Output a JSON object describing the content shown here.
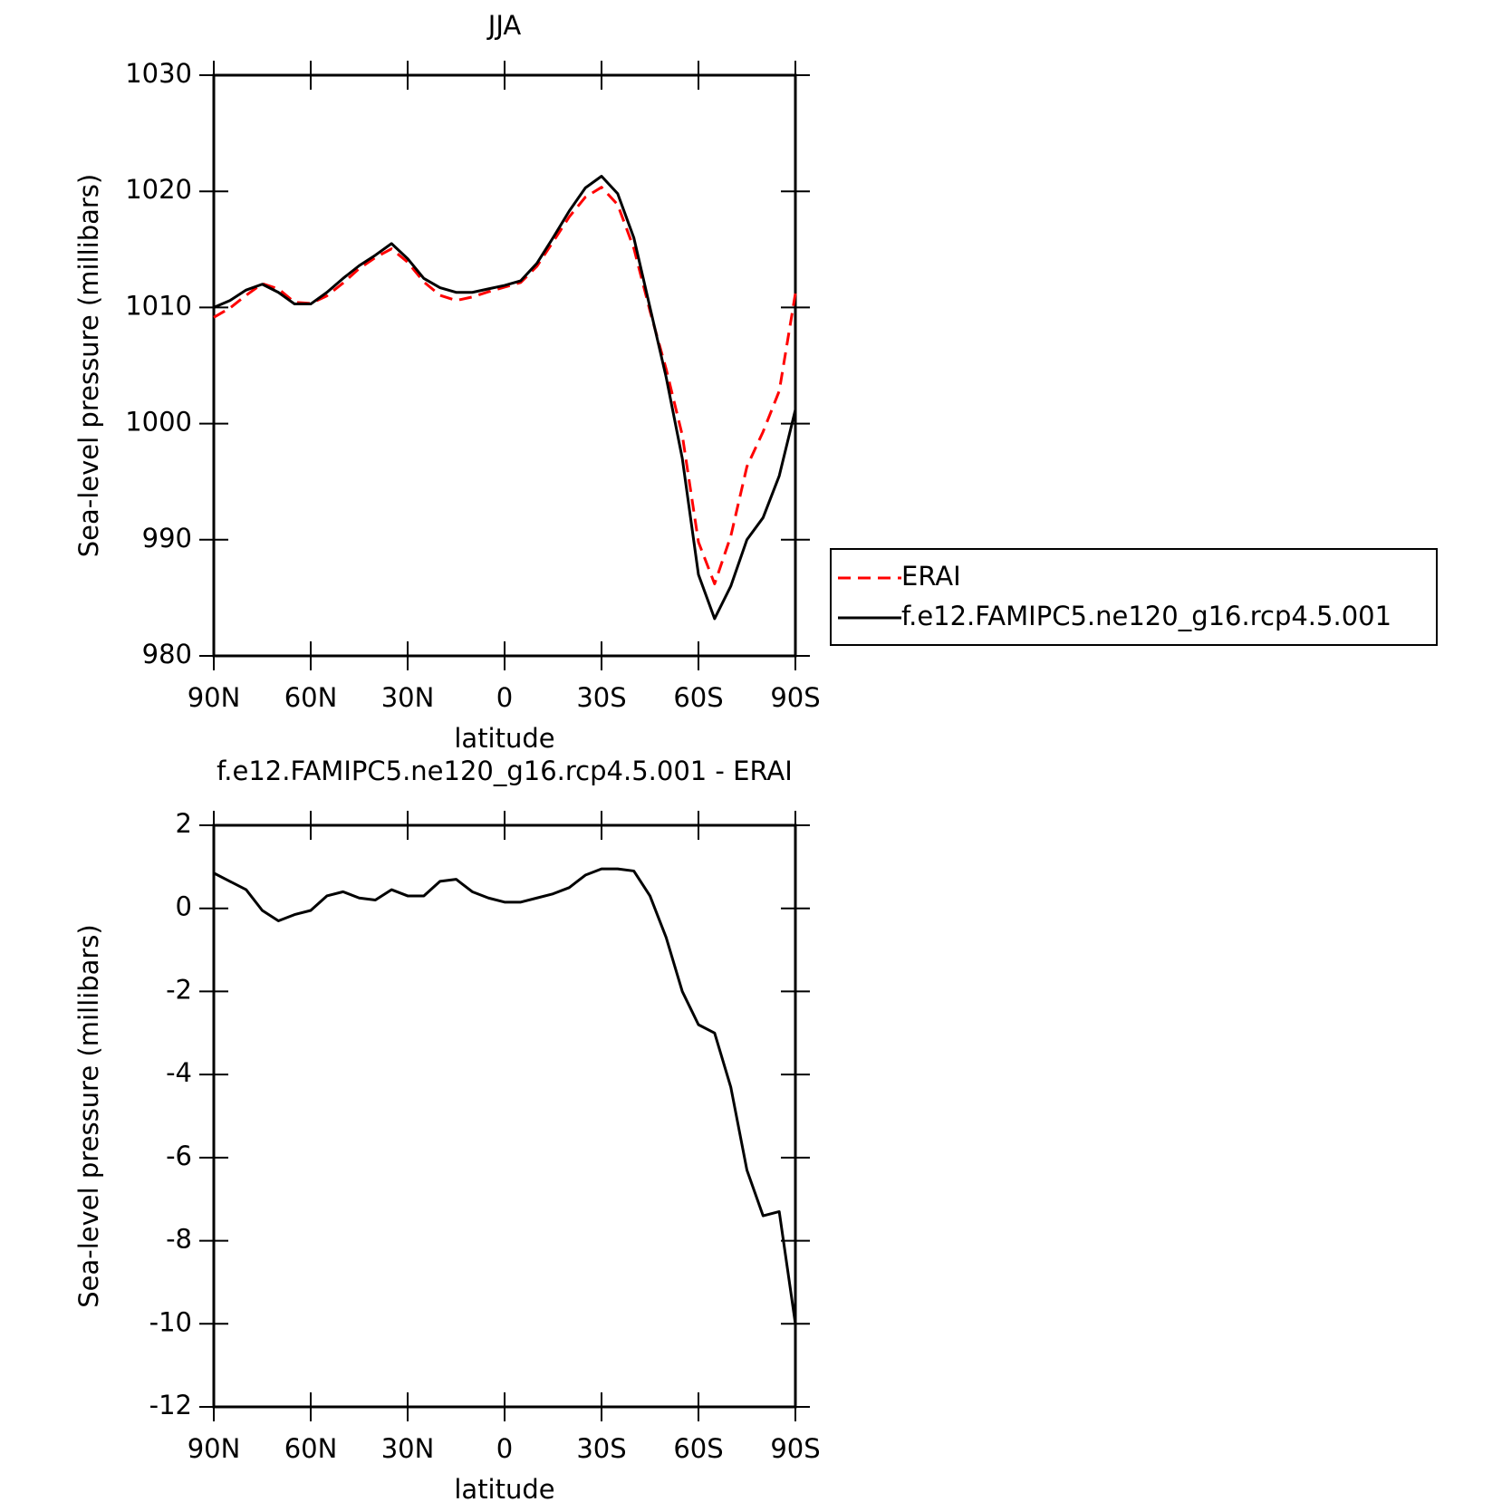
{
  "chart_data": [
    {
      "type": "line",
      "title": "JJA",
      "xlabel": "latitude",
      "ylabel": "Sea-level pressure (millibars)",
      "x": [
        90,
        85,
        80,
        75,
        70,
        65,
        60,
        55,
        50,
        45,
        40,
        35,
        30,
        25,
        20,
        15,
        10,
        5,
        0,
        -5,
        -10,
        -15,
        -20,
        -25,
        -30,
        -35,
        -40,
        -45,
        -50,
        -55,
        -60,
        -65,
        -70,
        -75,
        -80,
        -85,
        -90
      ],
      "xlim": [
        90,
        -90
      ],
      "xticks": [
        {
          "value": 90,
          "label": "90N"
        },
        {
          "value": 60,
          "label": "60N"
        },
        {
          "value": 30,
          "label": "30N"
        },
        0,
        {
          "value": -30,
          "label": "30S"
        },
        {
          "value": -60,
          "label": "60S"
        },
        {
          "value": -90,
          "label": "90S"
        }
      ],
      "ylim": [
        980,
        1030
      ],
      "yticks": [
        980,
        990,
        1000,
        1010,
        1020,
        1030
      ],
      "legend": "outside-right",
      "series": [
        {
          "name": "ERAI",
          "color": "#ff0000",
          "style": "dashed",
          "values": [
            1009.15,
            1009.95,
            1011.05,
            1012.05,
            1011.6,
            1010.45,
            1010.35,
            1011.0,
            1012.1,
            1013.35,
            1014.3,
            1015.05,
            1013.9,
            1012.2,
            1011.05,
            1010.6,
            1010.9,
            1011.35,
            1011.75,
            1012.15,
            1013.55,
            1015.65,
            1017.8,
            1019.5,
            1020.35,
            1018.85,
            1015.1,
            1009.7,
            1004.7,
            999,
            989.8,
            986.2,
            990.3,
            996.3,
            999.3,
            1002.8,
            1011.2
          ]
        },
        {
          "name": "f.e12.FAMIPC5.ne120_g16.rcp4.5.001",
          "color": "#000000",
          "style": "solid",
          "values": [
            1010.0,
            1010.6,
            1011.5,
            1012.0,
            1011.3,
            1010.3,
            1010.3,
            1011.3,
            1012.5,
            1013.6,
            1014.5,
            1015.5,
            1014.2,
            1012.5,
            1011.7,
            1011.3,
            1011.3,
            1011.6,
            1011.9,
            1012.3,
            1013.8,
            1016.0,
            1018.3,
            1020.3,
            1021.3,
            1019.8,
            1016,
            1010,
            1004,
            997,
            987,
            983.2,
            986,
            990,
            991.9,
            995.5,
            1001.2
          ]
        }
      ]
    },
    {
      "type": "line",
      "title": "f.e12.FAMIPC5.ne120_g16.rcp4.5.001 - ERAI",
      "xlabel": "latitude",
      "ylabel": "Sea-level pressure (millibars)",
      "x": [
        90,
        85,
        80,
        75,
        70,
        65,
        60,
        55,
        50,
        45,
        40,
        35,
        30,
        25,
        20,
        15,
        10,
        5,
        0,
        -5,
        -10,
        -15,
        -20,
        -25,
        -30,
        -35,
        -40,
        -45,
        -50,
        -55,
        -60,
        -65,
        -70,
        -75,
        -80,
        -85,
        -90
      ],
      "xlim": [
        90,
        -90
      ],
      "xticks": [
        {
          "value": 90,
          "label": "90N"
        },
        {
          "value": 60,
          "label": "60N"
        },
        {
          "value": 30,
          "label": "30N"
        },
        0,
        {
          "value": -30,
          "label": "30S"
        },
        {
          "value": -60,
          "label": "60S"
        },
        {
          "value": -90,
          "label": "90S"
        }
      ],
      "ylim": [
        -12,
        2
      ],
      "yticks": [
        -12,
        -10,
        -8,
        -6,
        -4,
        -2,
        0,
        2
      ],
      "color": "#000000",
      "values": [
        0.85,
        0.65,
        0.45,
        -0.05,
        -0.3,
        -0.15,
        -0.05,
        0.3,
        0.4,
        0.25,
        0.2,
        0.45,
        0.3,
        0.3,
        0.65,
        0.7,
        0.4,
        0.25,
        0.15,
        0.15,
        0.25,
        0.35,
        0.5,
        0.8,
        0.95,
        0.95,
        0.9,
        0.3,
        -0.7,
        -2.0,
        -2.8,
        -3.0,
        -4.3,
        -6.3,
        -7.4,
        -7.3,
        -10
      ]
    }
  ]
}
